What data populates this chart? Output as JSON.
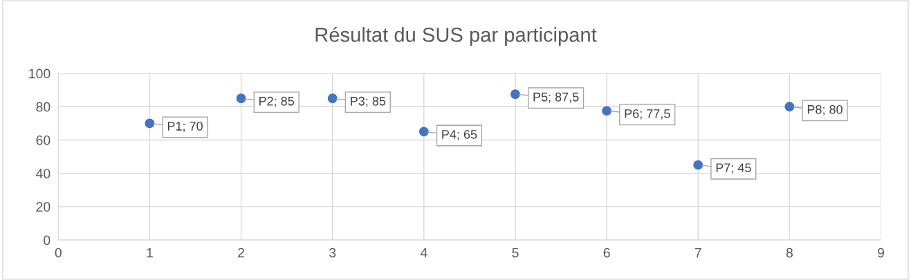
{
  "chart_data": {
    "type": "scatter",
    "title": "Résultat du SUS par participant",
    "x": [
      1,
      2,
      3,
      4,
      5,
      6,
      7,
      8
    ],
    "series": [
      {
        "color": "#4472c4",
        "values": [
          70,
          85,
          85,
          65,
          87.5,
          77.5,
          45,
          80
        ],
        "value_labels": [
          "P1; 70",
          "P2; 85",
          "P3; 85",
          "P4; 65",
          "P5; 87,5",
          "P6; 77,5",
          "P7; 45",
          "P8; 80"
        ]
      }
    ],
    "xlim": [
      0,
      9
    ],
    "xticks": [
      0,
      1,
      2,
      3,
      4,
      5,
      6,
      7,
      8,
      9
    ],
    "ylim": [
      0,
      100
    ],
    "yticks": [
      0,
      20,
      40,
      60,
      80,
      100
    ],
    "grid": true,
    "marker": "circle",
    "legend": false
  }
}
